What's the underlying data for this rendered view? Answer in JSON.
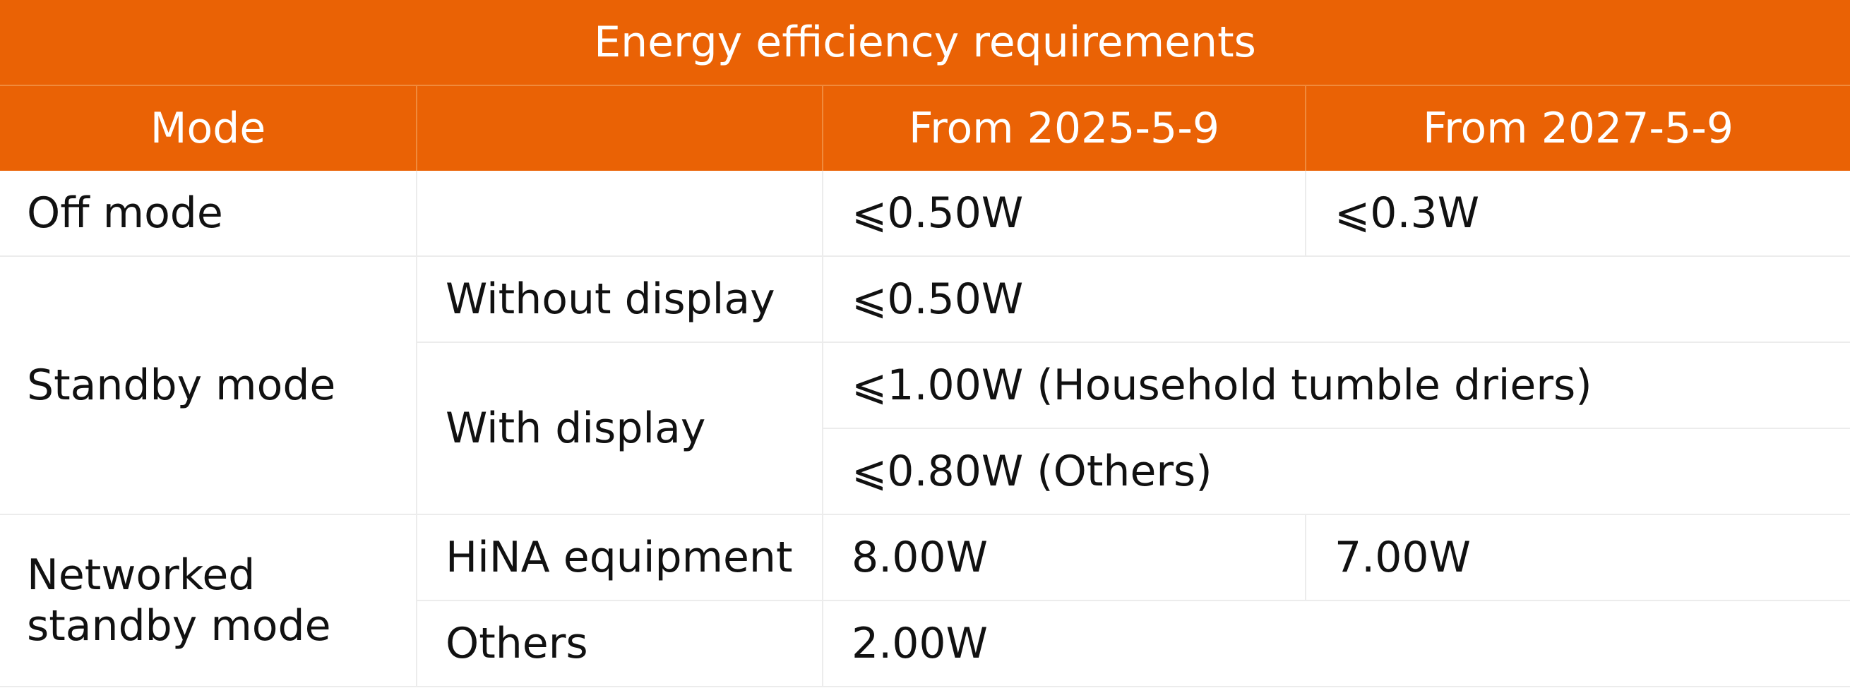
{
  "table": {
    "title": "Energy efficiency requirements",
    "headers": {
      "mode": "Mode",
      "sub": "",
      "from_2025": "From 2025-5-9",
      "from_2027": "From 2027-5-9"
    },
    "rows": {
      "off_mode": {
        "label": "Off mode",
        "value_2025": "⩽0.50W",
        "value_2027": "⩽0.3W"
      },
      "standby_mode": {
        "label": "Standby mode",
        "without_display": {
          "label": "Without display",
          "value": "⩽0.50W"
        },
        "with_display": {
          "label": "With display",
          "value_driers": "⩽1.00W (Household tumble driers)",
          "value_others": "⩽0.80W (Others)"
        }
      },
      "networked_standby": {
        "label_line1": "Networked",
        "label_line2": "standby mode",
        "hina": {
          "label": "HiNA equipment",
          "value_2025": "8.00W",
          "value_2027": "7.00W"
        },
        "others": {
          "label": "Others",
          "value": "2.00W"
        }
      }
    }
  }
}
